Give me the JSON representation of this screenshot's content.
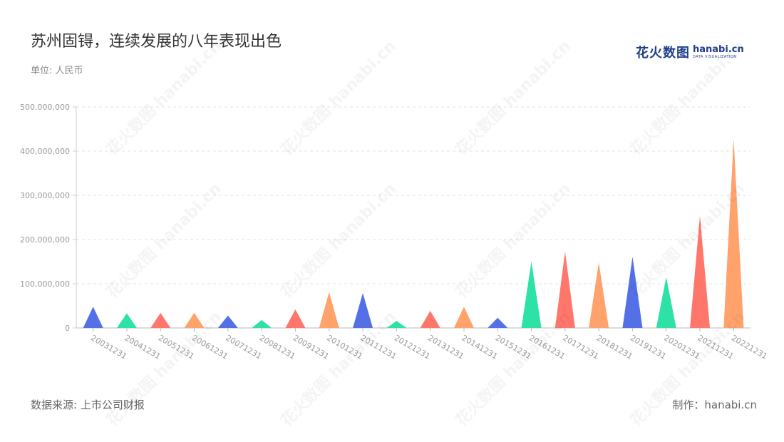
{
  "header": {
    "title": "苏州固锝，连续发展的八年表现出色",
    "unit": "单位: 人民币"
  },
  "logo": {
    "cn": "花火数图",
    "en": "hanabi.cn",
    "sub": "DATA VISUALIZATION"
  },
  "footer": {
    "source": "数据来源: 上市公司财报",
    "maker": "制作：hanabi.cn"
  },
  "chart_data": {
    "type": "bar",
    "mark_shape": "triangle",
    "categories": [
      "20031231",
      "20041231",
      "20051231",
      "20061231",
      "20071231",
      "20081231",
      "20091231",
      "20101231",
      "20111231",
      "20121231",
      "20131231",
      "20141231",
      "20151231",
      "20161231",
      "20171231",
      "20181231",
      "20191231",
      "20201231",
      "20211231",
      "20221231"
    ],
    "values": [
      48000000,
      33000000,
      34000000,
      34000000,
      28000000,
      18000000,
      42000000,
      81000000,
      79000000,
      16000000,
      39000000,
      48000000,
      23000000,
      150000000,
      173000000,
      148000000,
      161000000,
      115000000,
      254000000,
      428000000
    ],
    "colors": [
      "#5470e6",
      "#2de2a6",
      "#ff776b",
      "#ffa26b",
      "#5470e6",
      "#2de2a6",
      "#ff776b",
      "#ffa26b",
      "#5470e6",
      "#2de2a6",
      "#ff776b",
      "#ffa26b",
      "#5470e6",
      "#2de2a6",
      "#ff776b",
      "#ffa26b",
      "#5470e6",
      "#2de2a6",
      "#ff776b",
      "#ffa26b"
    ],
    "yticks": [
      "0",
      "100,000,000",
      "200,000,000",
      "300,000,000",
      "400,000,000",
      "500,000,000"
    ],
    "ylim": [
      0,
      500000000
    ],
    "grid": true,
    "legend": "none",
    "xlabel": "",
    "ylabel": ""
  }
}
